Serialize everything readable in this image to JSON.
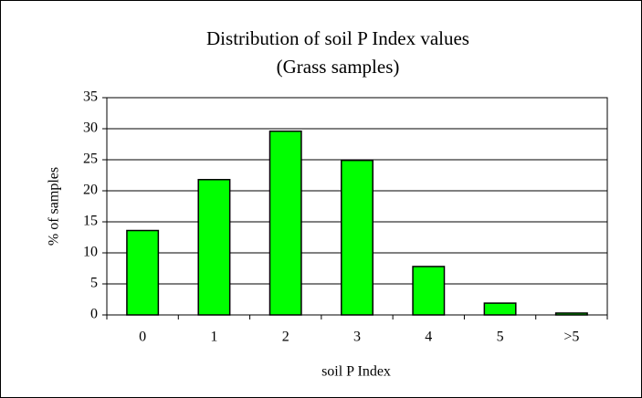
{
  "chart_data": {
    "type": "bar",
    "title": "Distribution of soil P Index values",
    "subtitle": "(Grass samples)",
    "x_label": "soil P Index",
    "y_label": "% of samples",
    "categories": [
      "0",
      "1",
      "2",
      "3",
      "4",
      "5",
      ">5"
    ],
    "values": [
      13.6,
      21.8,
      29.6,
      24.9,
      7.8,
      1.9,
      0.3
    ],
    "color": "#00ff00",
    "ylim": [
      0,
      35
    ],
    "yticks": [
      0,
      5,
      10,
      15,
      20,
      25,
      30,
      35
    ],
    "grid": true
  }
}
